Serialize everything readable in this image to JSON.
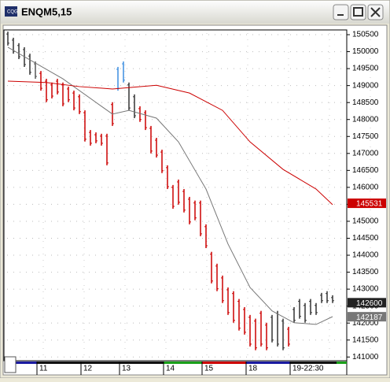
{
  "window_title": "ENQM5,15",
  "chart_data": {
    "type": "ohlc",
    "ylim": [
      140890,
      150640
    ],
    "yticks": [
      141000,
      141500,
      142000,
      142500,
      143000,
      143500,
      144000,
      144500,
      145000,
      145500,
      146000,
      146500,
      147000,
      147500,
      148000,
      148500,
      149000,
      149500,
      150000,
      150500
    ],
    "high": [
      150590,
      150410,
      150250,
      150130,
      149940,
      149710,
      149430,
      149200,
      149090,
      149200,
      149090,
      148970,
      148850,
      148740,
      148270,
      147690,
      147620,
      147580,
      147580,
      148510,
      149550,
      149710,
      149090,
      148740,
      148390,
      148270,
      147810,
      147460,
      147110,
      146650,
      146070,
      146230,
      145950,
      145720,
      145610,
      145610,
      144910,
      144100,
      143750,
      143400,
      143050,
      142940,
      142710,
      142470,
      142240,
      142130,
      142360,
      142010,
      142240,
      142360,
      142130,
      141890,
      142470,
      142710,
      142590,
      142710,
      142590,
      142890,
      142940,
      142820
    ],
    "low": [
      150180,
      149940,
      149780,
      149550,
      149320,
      149200,
      148850,
      148510,
      148620,
      148740,
      148390,
      148510,
      148270,
      148160,
      147350,
      147230,
      147300,
      147230,
      146650,
      147810,
      148850,
      149090,
      148270,
      148040,
      147930,
      147690,
      147000,
      146880,
      146420,
      145950,
      145370,
      145490,
      145260,
      144910,
      145030,
      144560,
      144210,
      143170,
      142940,
      142590,
      142240,
      142010,
      141780,
      141660,
      141310,
      141200,
      141310,
      141200,
      141430,
      141310,
      141200,
      141310,
      142010,
      142130,
      142010,
      142240,
      142240,
      142590,
      142590,
      142590
    ],
    "bar_colors": [
      "#333333",
      "#333333",
      "#333333",
      "#333333",
      "#333333",
      "#555555",
      "#cc0000",
      "#cc0000",
      "#cc0000",
      "#cc0000",
      "#cc0000",
      "#cc0000",
      "#cc0000",
      "#cc0000",
      "#cc0000",
      "#cc0000",
      "#cc0000",
      "#cc0000",
      "#cc0000",
      "#cc0000",
      "#3c8ee0",
      "#3c8ee0",
      "#333333",
      "#333333",
      "#cc0000",
      "#cc0000",
      "#cc0000",
      "#cc0000",
      "#cc0000",
      "#cc0000",
      "#cc0000",
      "#cc0000",
      "#cc0000",
      "#cc0000",
      "#cc0000",
      "#cc0000",
      "#cc0000",
      "#cc0000",
      "#cc0000",
      "#cc0000",
      "#cc0000",
      "#cc0000",
      "#cc0000",
      "#cc0000",
      "#cc0000",
      "#cc0000",
      "#cc0000",
      "#cc0000",
      "#333333",
      "#333333",
      "#333333",
      "#cc0000",
      "#333333",
      "#333333",
      "#333333",
      "#333333",
      "#333333",
      "#333333",
      "#333333",
      "#333333"
    ],
    "ma_lines": [
      {
        "color": "#777777",
        "bar": [
          0,
          10,
          17,
          19,
          22,
          27,
          31,
          36,
          40,
          44,
          48,
          52,
          56,
          59
        ],
        "values": [
          150130,
          149200,
          148390,
          148160,
          148270,
          148040,
          147340,
          145950,
          144330,
          143050,
          142360,
          142010,
          141960,
          142190
        ]
      },
      {
        "color": "#cc0000",
        "bar": [
          0,
          7,
          13,
          19,
          27,
          33,
          39,
          44,
          50,
          56,
          59
        ],
        "values": [
          149130,
          149090,
          148970,
          148900,
          149010,
          148780,
          148270,
          147340,
          146530,
          145950,
          145490
        ]
      }
    ],
    "price_labels": [
      {
        "value": 145531,
        "color": "#cc0000"
      },
      {
        "value": 142600,
        "color": "#222222"
      },
      {
        "value": 142187,
        "color": "#777777"
      }
    ],
    "date_labels": [
      "11",
      "12",
      "13",
      "14",
      "15",
      "18",
      "19-22:30"
    ],
    "date_bars": [
      6,
      14,
      21,
      29,
      36,
      44,
      52
    ],
    "session_colors": [
      "#1a1aa0",
      "#111111",
      "#111111",
      "#111111",
      "#1aa01a",
      "#cc0000",
      "#1a1aa0",
      "#111111"
    ]
  }
}
